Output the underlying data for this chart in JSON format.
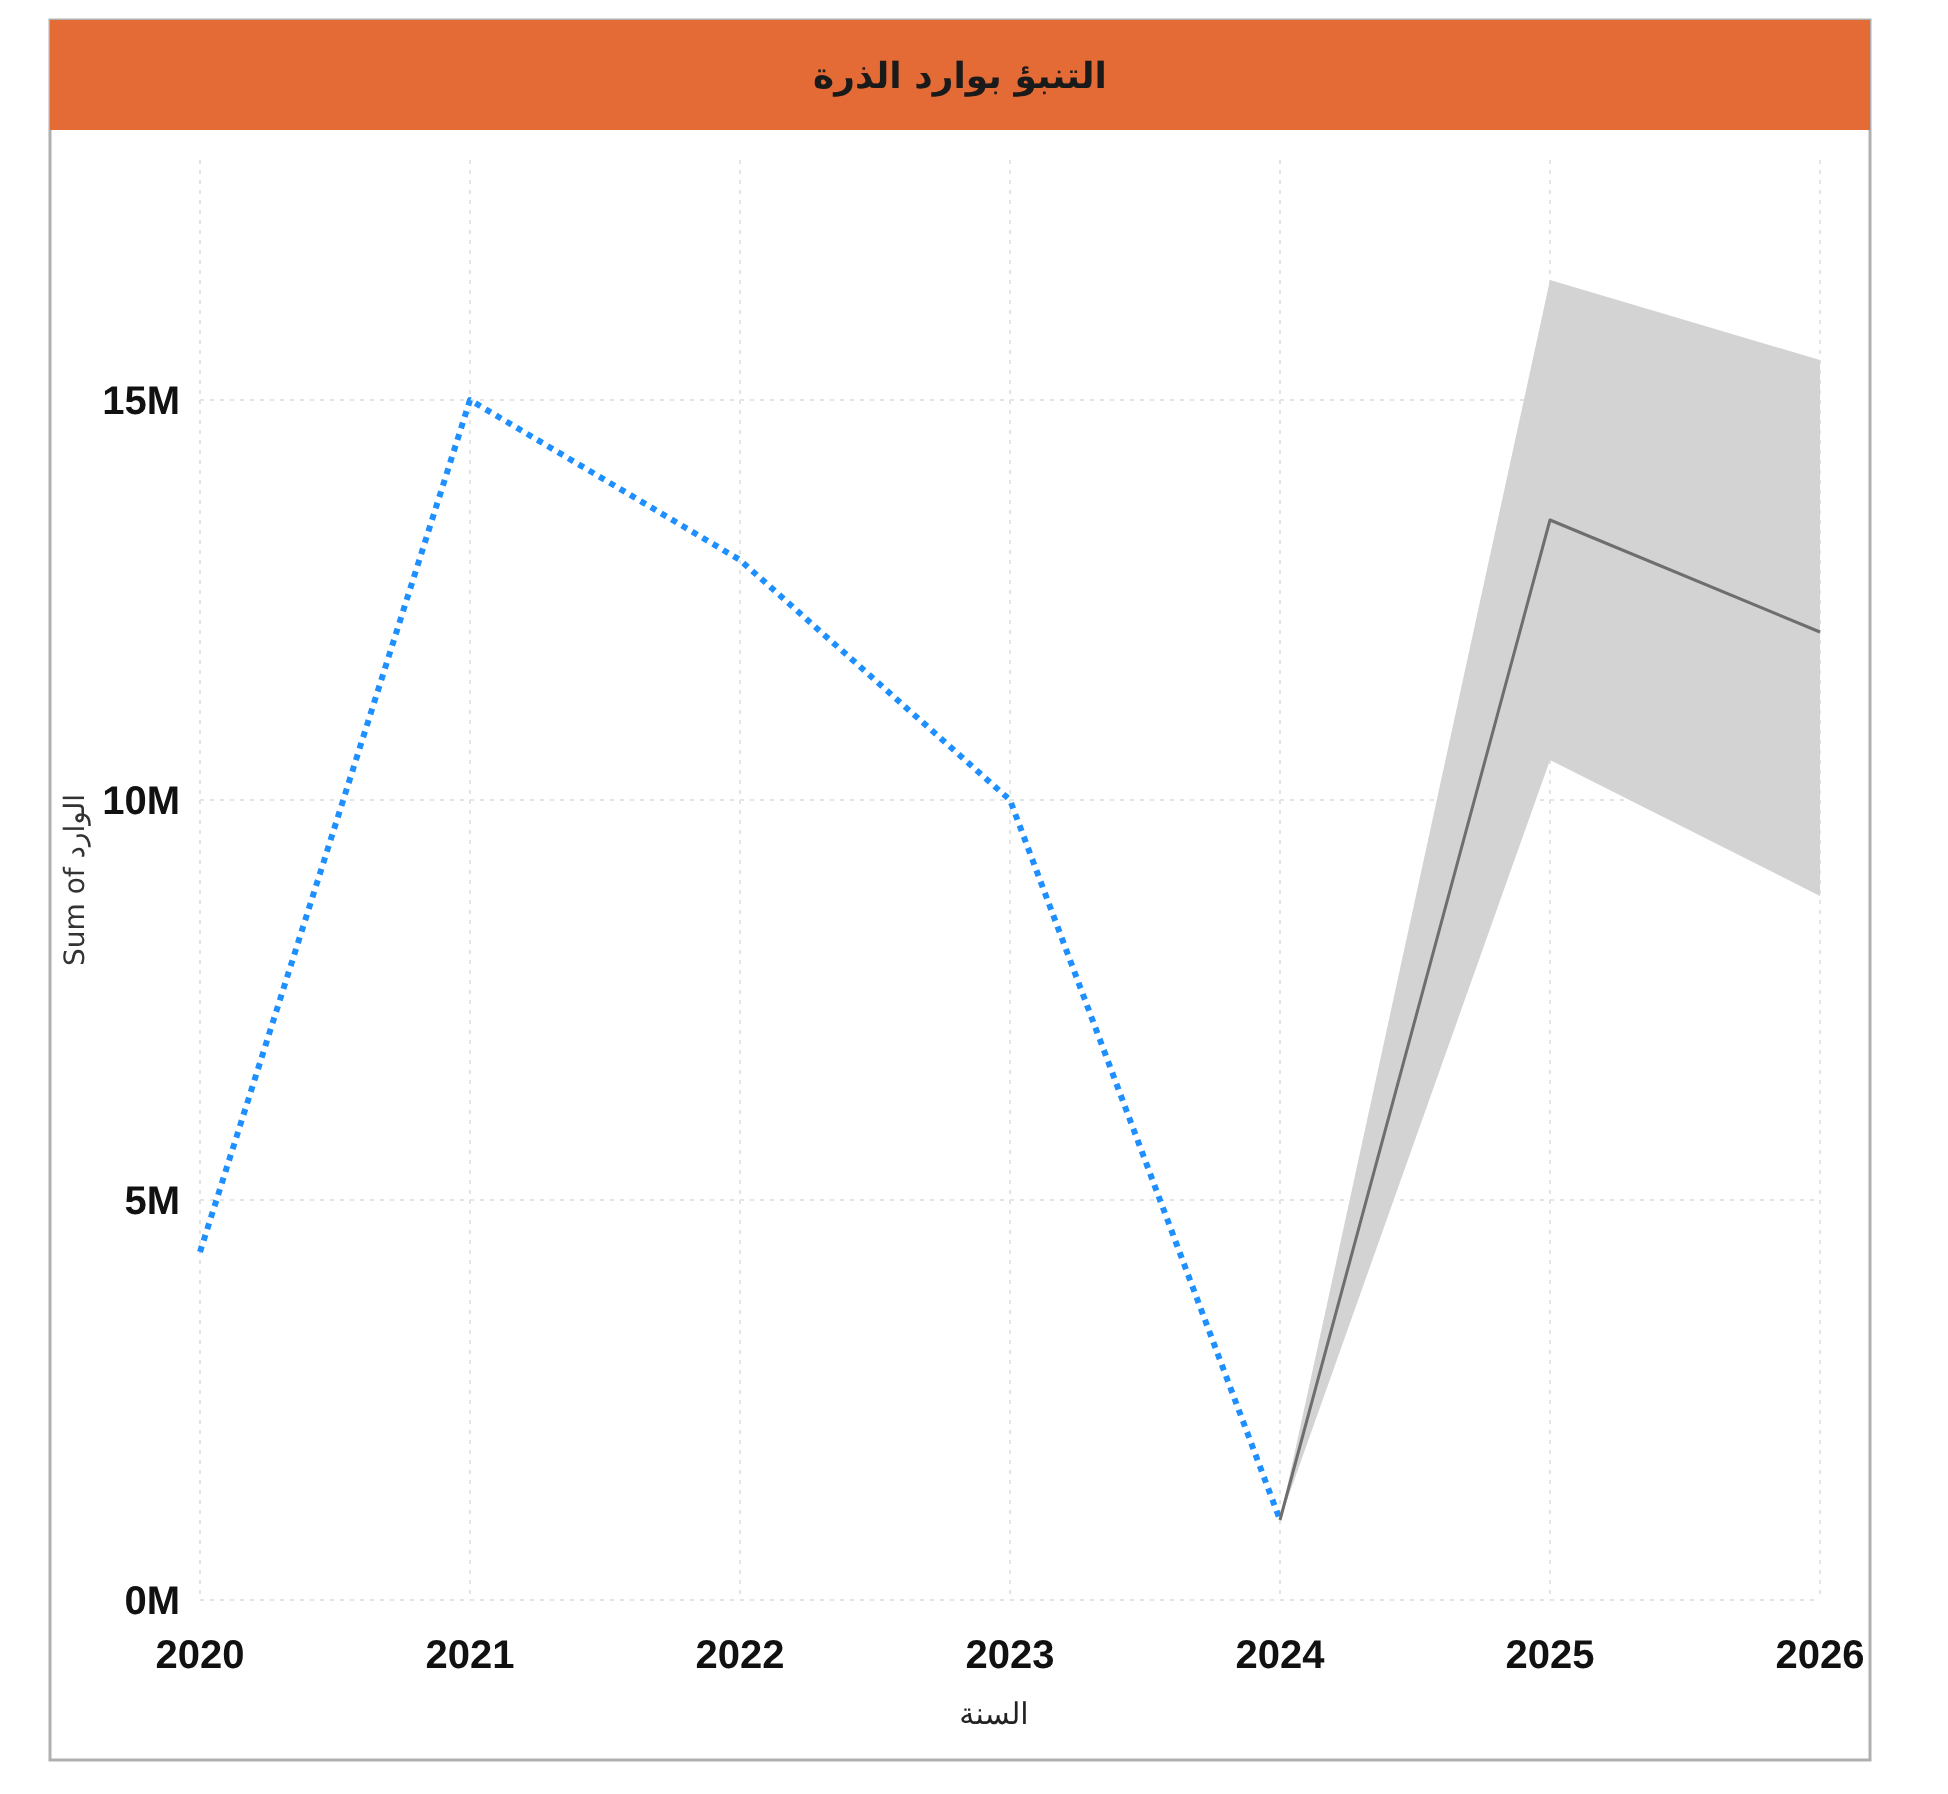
{
  "chart_data": {
    "type": "line",
    "title": "التنبؤ بوارد الذرة",
    "xlabel": "السنة",
    "ylabel": "Sum of الوارد",
    "x": [
      2020,
      2021,
      2022,
      2023,
      2024
    ],
    "series": [
      {
        "color": "#1e8fff",
        "line_style": "dotted",
        "values": [
          4350000,
          15000000,
          13000000,
          10000000,
          1000000
        ]
      },
      {
        "color": "#6e6e6e",
        "line_style": "solid",
        "x": [
          2024,
          2025,
          2026
        ],
        "values": [
          1000000,
          13500000,
          12100000
        ],
        "lower": [
          1000000,
          10500000,
          8800000
        ],
        "upper": [
          1000000,
          16500000,
          15500000
        ]
      }
    ],
    "xlim": [
      2020,
      2026
    ],
    "ylim": [
      0,
      18000000
    ],
    "xticks": [
      2020,
      2021,
      2022,
      2023,
      2024,
      2025,
      2026
    ],
    "yticks": [
      {
        "value": 0,
        "label": "0M"
      },
      {
        "value": 5000000,
        "label": "5M"
      },
      {
        "value": 10000000,
        "label": "10M"
      },
      {
        "value": 15000000,
        "label": "15M"
      }
    ],
    "grid": true,
    "marker": "none"
  }
}
